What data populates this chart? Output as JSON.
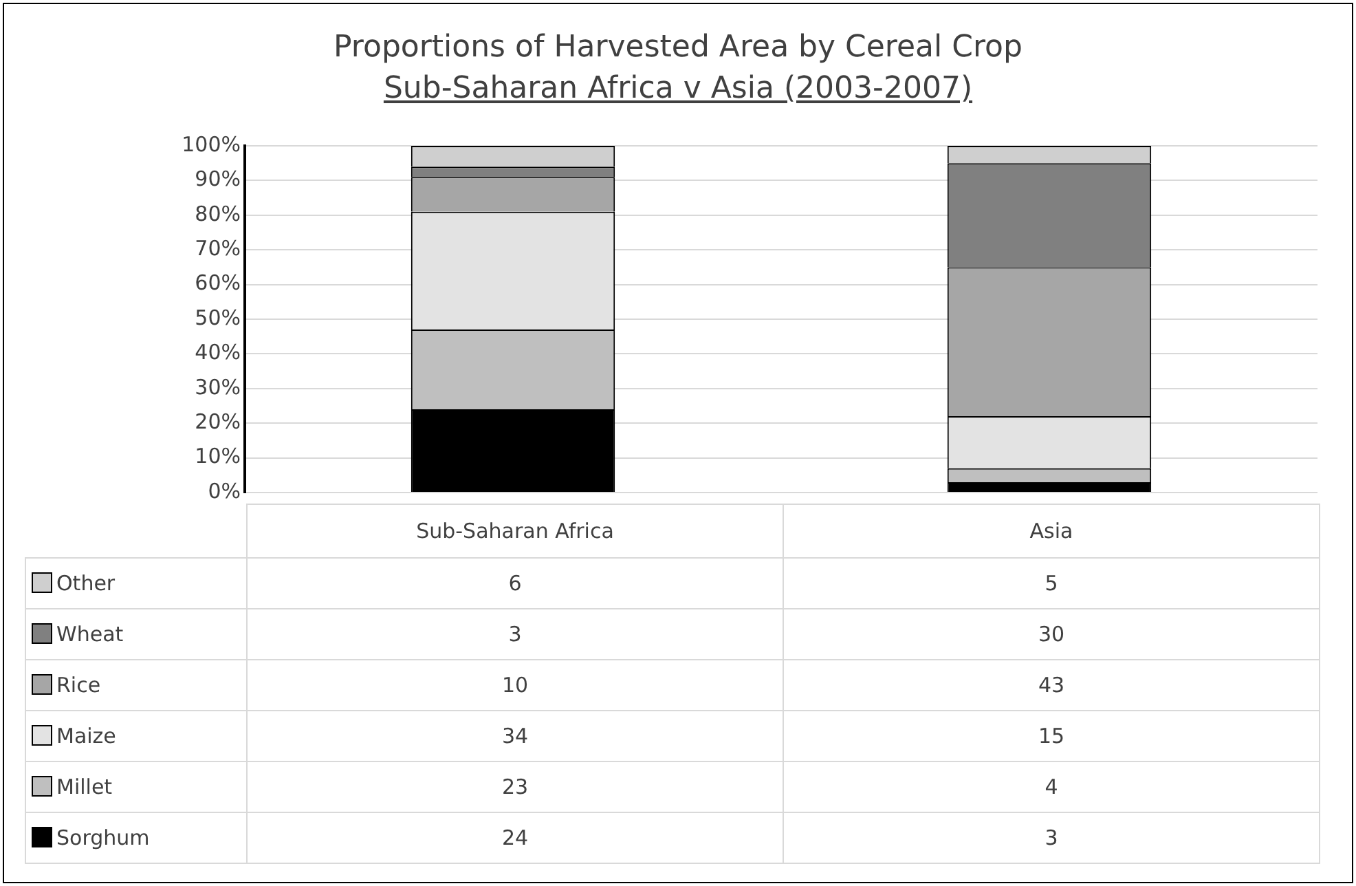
{
  "chart_data": {
    "type": "bar",
    "title": "Proportions of Harvested Area by Cereal Crop",
    "subtitle": "Sub-Saharan Africa v Asia (2003-2007)",
    "categories": [
      "Sub-Saharan Africa",
      "Asia"
    ],
    "stacked": true,
    "series": [
      {
        "name": "Sorghum",
        "color": "#000000",
        "values": [
          24,
          3
        ]
      },
      {
        "name": "Millet",
        "color": "#bfbfbf",
        "values": [
          23,
          4
        ]
      },
      {
        "name": "Maize",
        "color": "#e3e3e3",
        "values": [
          34,
          15
        ]
      },
      {
        "name": "Rice",
        "color": "#a6a6a6",
        "values": [
          10,
          43
        ]
      },
      {
        "name": "Wheat",
        "color": "#808080",
        "values": [
          3,
          30
        ]
      },
      {
        "name": "Other",
        "color": "#cfcfcf",
        "values": [
          6,
          5
        ]
      }
    ],
    "ylim": [
      0,
      100
    ],
    "yticks": [
      {
        "value": 0,
        "label": "0%"
      },
      {
        "value": 10,
        "label": "10%"
      },
      {
        "value": 20,
        "label": "20%"
      },
      {
        "value": 30,
        "label": "30%"
      },
      {
        "value": 40,
        "label": "40%"
      },
      {
        "value": 50,
        "label": "50%"
      },
      {
        "value": 60,
        "label": "60%"
      },
      {
        "value": 70,
        "label": "70%"
      },
      {
        "value": 80,
        "label": "80%"
      },
      {
        "value": 90,
        "label": "90%"
      },
      {
        "value": 100,
        "label": "100%"
      }
    ],
    "grid": "y",
    "legend": "bottom",
    "data_labels": true
  }
}
